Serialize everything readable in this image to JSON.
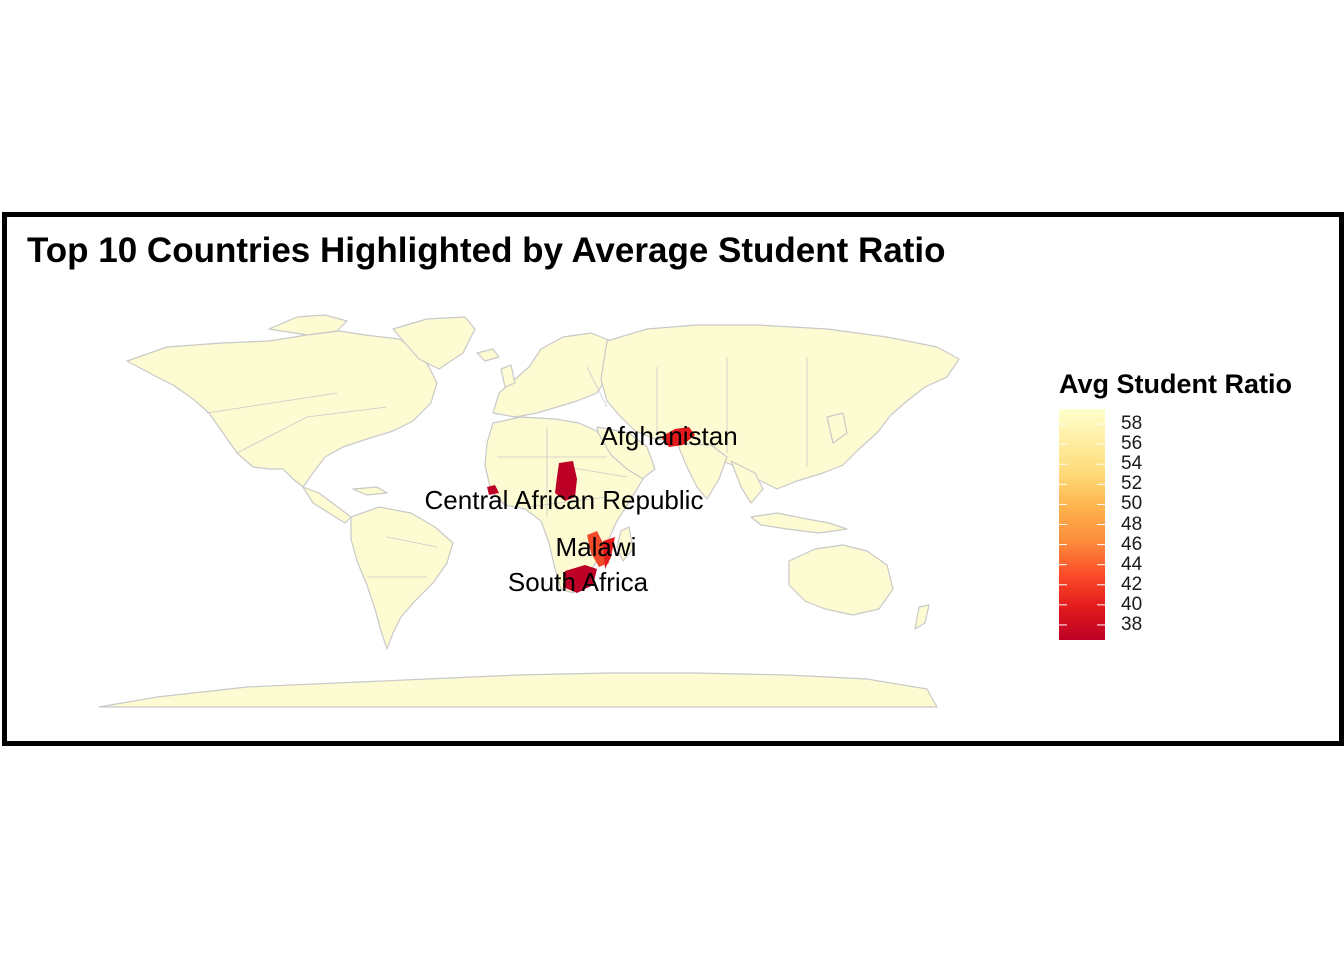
{
  "title": "Top 10 Countries Highlighted by Average Student Ratio",
  "legend": {
    "title": "Avg Student Ratio",
    "min": 36.5,
    "max": 59.5,
    "ticks": [
      "58",
      "56",
      "54",
      "52",
      "50",
      "48",
      "46",
      "44",
      "42",
      "40",
      "38"
    ],
    "gradient_colors": [
      "#bd0026",
      "#e31a1c",
      "#fc4e2a",
      "#fd8d3c",
      "#feb24c",
      "#fed976",
      "#ffeda0",
      "#ffffcc"
    ]
  },
  "colors": {
    "land": "#fdfbd2",
    "border": "#c9c9c9",
    "highlight_dark": "#bd0026",
    "highlight_mid": "#e31a1c",
    "highlight_orange": "#f04a2a"
  },
  "country_labels": [
    "Afghanistan",
    "Central African Republic",
    "Malawi",
    "South Africa"
  ]
}
